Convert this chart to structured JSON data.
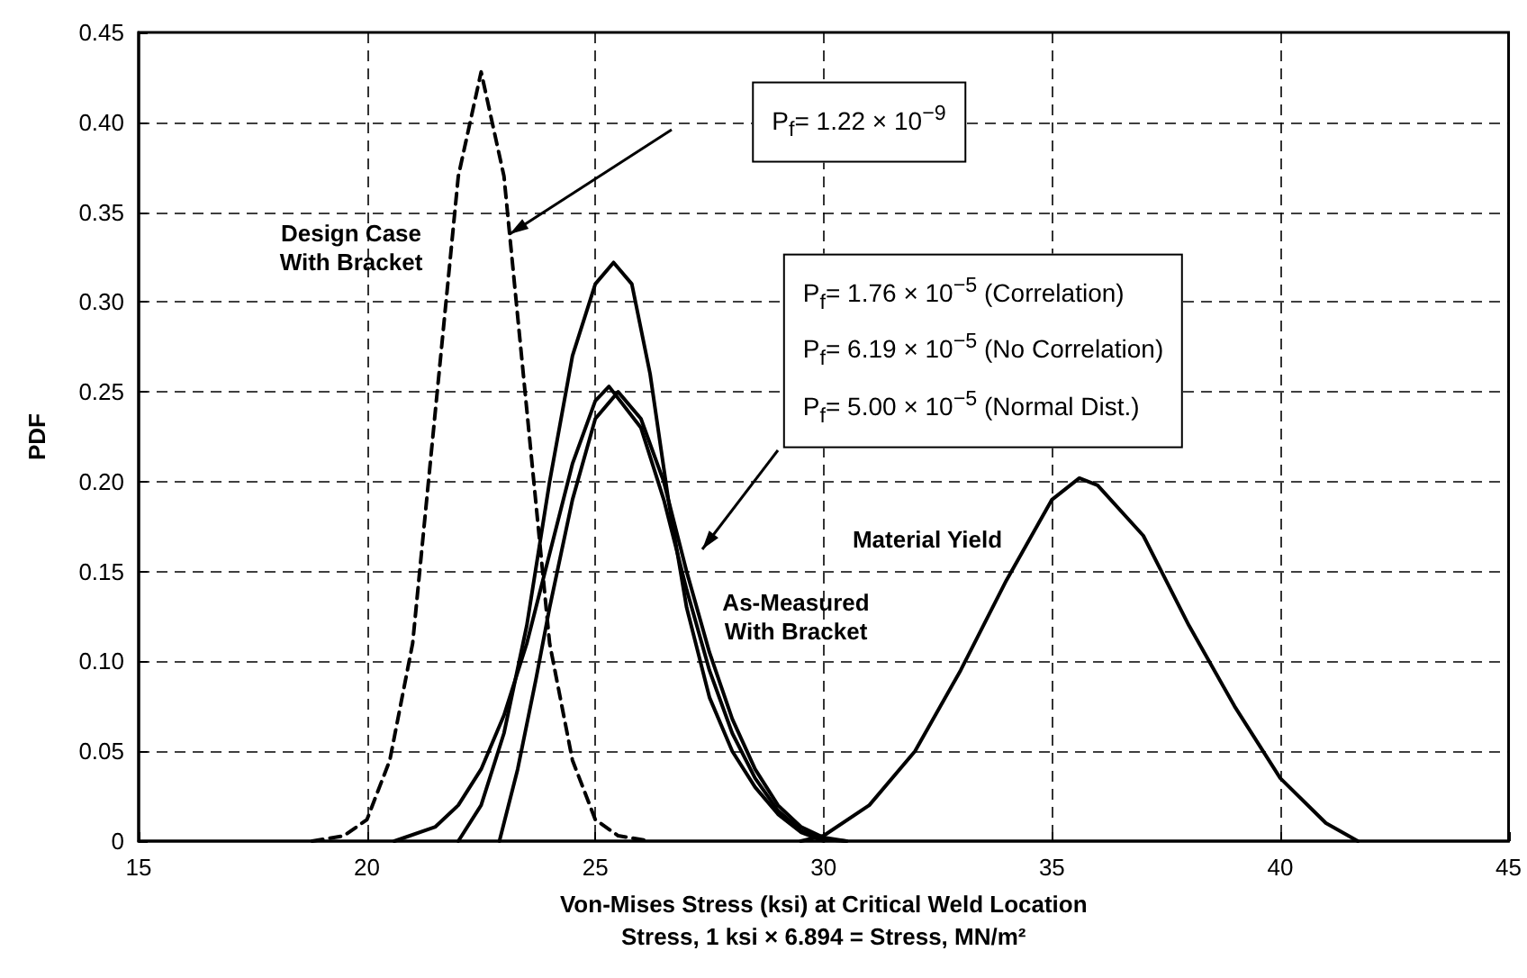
{
  "chart_data": {
    "type": "line",
    "xlabel": "Von-Mises Stress (ksi) at Critical Weld Location\nStress, 1 ksi × 6.894 = Stress, MN/m²",
    "ylabel": "PDF",
    "xlim": [
      15,
      45
    ],
    "xticks": [
      15,
      20,
      25,
      30,
      35,
      40,
      45
    ],
    "ylim": [
      0,
      0.45
    ],
    "yticks": [
      0,
      0.05,
      {
        "value": 0.1,
        "label": "0.10"
      },
      0.15,
      {
        "value": 0.2,
        "label": "0.20"
      },
      0.25,
      {
        "value": 0.3,
        "label": "0.30"
      },
      0.35,
      {
        "value": 0.4,
        "label": "0.40"
      },
      0.45
    ],
    "grid": true,
    "marker": "none",
    "series": [
      {
        "color": "#000000",
        "line_style": "dashed",
        "x": [
          18.8,
          19.5,
          20,
          20.5,
          21,
          21.5,
          22,
          22.5,
          23,
          23.5,
          24,
          24.5,
          25,
          25.5,
          26.2
        ],
        "values": [
          0,
          0.003,
          0.012,
          0.045,
          0.11,
          0.24,
          0.37,
          0.428,
          0.37,
          0.24,
          0.11,
          0.045,
          0.012,
          0.003,
          0
        ]
      },
      {
        "color": "#000000",
        "line_style": "solid",
        "x": [
          22,
          22.5,
          23,
          23.5,
          24,
          24.5,
          25,
          25.4,
          25.8,
          26.2,
          26.6,
          27,
          27.5,
          28,
          28.5,
          29,
          29.5,
          30
        ],
        "values": [
          0,
          0.02,
          0.06,
          0.12,
          0.2,
          0.27,
          0.31,
          0.322,
          0.31,
          0.26,
          0.19,
          0.13,
          0.08,
          0.05,
          0.03,
          0.015,
          0.005,
          0
        ]
      },
      {
        "color": "#000000",
        "line_style": "solid",
        "x": [
          20.6,
          21.5,
          22,
          22.5,
          23,
          23.5,
          24,
          24.5,
          25,
          25.3,
          26,
          26.5,
          27,
          27.5,
          28,
          28.5,
          29,
          29.5,
          30,
          30.5
        ],
        "values": [
          0,
          0.008,
          0.02,
          0.04,
          0.07,
          0.11,
          0.16,
          0.21,
          0.245,
          0.253,
          0.23,
          0.19,
          0.14,
          0.095,
          0.06,
          0.035,
          0.017,
          0.006,
          0.001,
          0
        ]
      },
      {
        "color": "#000000",
        "line_style": "solid",
        "x": [
          22.9,
          23.3,
          23.7,
          24,
          24.5,
          25,
          25.5,
          26,
          26.5,
          27,
          27.5,
          28,
          28.5,
          29,
          29.5,
          30,
          30.5
        ],
        "values": [
          0,
          0.04,
          0.09,
          0.13,
          0.19,
          0.235,
          0.25,
          0.235,
          0.2,
          0.15,
          0.105,
          0.068,
          0.04,
          0.02,
          0.008,
          0.002,
          0
        ]
      },
      {
        "color": "#000000",
        "line_style": "solid",
        "x": [
          29.5,
          30,
          31,
          32,
          33,
          34,
          35,
          35.6,
          36,
          37,
          38,
          39,
          40,
          41,
          41.7
        ],
        "values": [
          0,
          0.003,
          0.02,
          0.05,
          0.095,
          0.145,
          0.19,
          0.202,
          0.198,
          0.17,
          0.12,
          0.075,
          0.035,
          0.01,
          0
        ]
      }
    ],
    "annotations": [
      "Design Case\nWith Bracket",
      "As-Measured\nWith Bracket",
      "Material Yield",
      "P$_{f}$= 1.22 × 10$^{−9}$",
      "P$_{f}$= 1.76 × 10$^{−5}$ (Correlation)\nP$_{f}$= 6.19 × 10$^{−5}$ (No Correlation)\nP$_{f}$= 5.00 × 10$^{−5}$ (Normal Dist.)"
    ]
  }
}
